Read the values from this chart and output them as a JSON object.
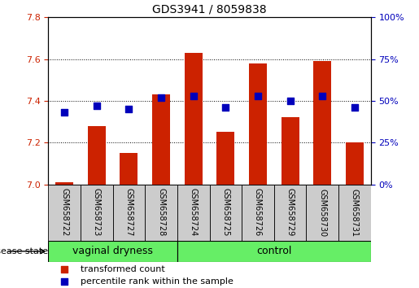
{
  "title": "GDS3941 / 8059838",
  "samples": [
    "GSM658722",
    "GSM658723",
    "GSM658727",
    "GSM658728",
    "GSM658724",
    "GSM658725",
    "GSM658726",
    "GSM658729",
    "GSM658730",
    "GSM658731"
  ],
  "transformed_count": [
    7.01,
    7.28,
    7.15,
    7.43,
    7.63,
    7.25,
    7.58,
    7.32,
    7.59,
    7.2
  ],
  "percentile_rank": [
    43,
    47,
    45,
    52,
    53,
    46,
    53,
    50,
    53,
    46
  ],
  "ylim_left": [
    7.0,
    7.8
  ],
  "ylim_right": [
    0,
    100
  ],
  "yticks_left": [
    7.0,
    7.2,
    7.4,
    7.6,
    7.8
  ],
  "yticks_right": [
    0,
    25,
    50,
    75,
    100
  ],
  "bar_color": "#CC2200",
  "dot_color": "#0000BB",
  "bar_width": 0.55,
  "dot_size": 35,
  "grid_color": "black",
  "tick_label_color_left": "#CC2200",
  "tick_label_color_right": "#0000BB",
  "legend_items": [
    {
      "label": "transformed count",
      "color": "#CC2200"
    },
    {
      "label": "percentile rank within the sample",
      "color": "#0000BB"
    }
  ],
  "disease_state_label": "disease state",
  "xlabel_box_color": "#CCCCCC",
  "group_box_color": "#66EE66",
  "group_boundaries": [
    [
      -0.5,
      3.5,
      "vaginal dryness"
    ],
    [
      3.5,
      9.5,
      "control"
    ]
  ],
  "figsize": [
    5.15,
    3.54
  ],
  "dpi": 100
}
